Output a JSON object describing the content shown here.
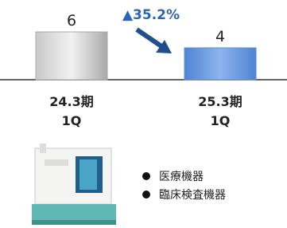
{
  "chart_data": {
    "type": "bar",
    "categories": [
      "24.3期\n1Q",
      "25.3期\n1Q"
    ],
    "values": [
      6,
      4
    ],
    "colors": [
      "#a9a9a9",
      "#5b8fd8"
    ],
    "annotation": "▲35.2%",
    "products": [
      "医療機器",
      "臨床検査機器"
    ]
  }
}
